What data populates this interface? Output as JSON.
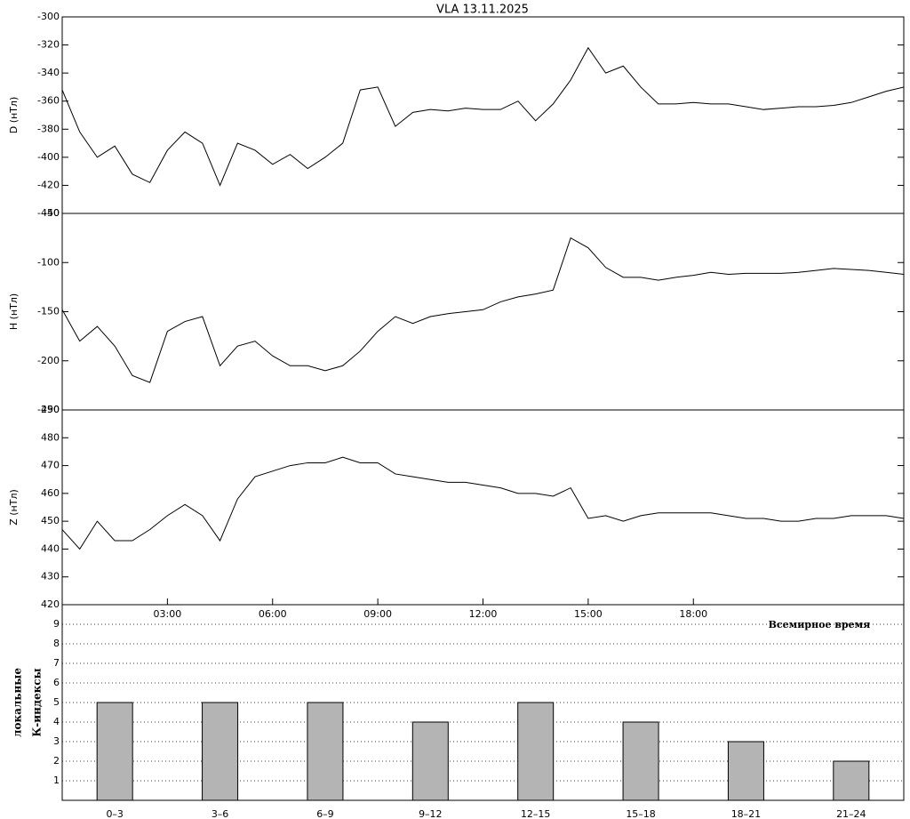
{
  "chart_data": [
    {
      "type": "line",
      "title": "VLA   13.11.2025",
      "y_label": "D (нТл)",
      "color": "#000000",
      "x": [
        0,
        0.5,
        1,
        1.5,
        2,
        2.5,
        3,
        3.5,
        4,
        4.5,
        5,
        5.5,
        6,
        6.5,
        7,
        7.5,
        8,
        8.5,
        9,
        9.5,
        10,
        10.5,
        11,
        11.5,
        12,
        12.5,
        13,
        13.5,
        14,
        14.5,
        15,
        15.5,
        16,
        16.5,
        17,
        17.5,
        18,
        18.5,
        19,
        19.5,
        20,
        20.5,
        21,
        21.5,
        22,
        22.5,
        23,
        23.5,
        24
      ],
      "values": [
        -352,
        -382,
        -400,
        -392,
        -412,
        -418,
        -395,
        -382,
        -390,
        -420,
        -390,
        -395,
        -405,
        -398,
        -408,
        -400,
        -390,
        -352,
        -350,
        -378,
        -368,
        -366,
        -367,
        -365,
        -366,
        -366,
        -360,
        -374,
        -362,
        -345,
        -322,
        -340,
        -335,
        -350,
        -362,
        -362,
        -361,
        -362,
        -362,
        -364,
        -366,
        -365,
        -364,
        -364,
        -363,
        -361,
        -357,
        -353,
        -350
      ],
      "xlim": [
        0,
        24
      ],
      "ylim": [
        -440,
        -300
      ],
      "yticks": [
        -440,
        -420,
        -400,
        -380,
        -360,
        -340,
        -320,
        -300
      ]
    },
    {
      "type": "line",
      "y_label": "H (нТл)",
      "color": "#000000",
      "x": [
        0,
        0.5,
        1,
        1.5,
        2,
        2.5,
        3,
        3.5,
        4,
        4.5,
        5,
        5.5,
        6,
        6.5,
        7,
        7.5,
        8,
        8.5,
        9,
        9.5,
        10,
        10.5,
        11,
        11.5,
        12,
        12.5,
        13,
        13.5,
        14,
        14.5,
        15,
        15.5,
        16,
        16.5,
        17,
        17.5,
        18,
        18.5,
        19,
        19.5,
        20,
        20.5,
        21,
        21.5,
        22,
        22.5,
        23,
        23.5,
        24
      ],
      "values": [
        -148,
        -180,
        -165,
        -185,
        -215,
        -222,
        -170,
        -160,
        -155,
        -205,
        -185,
        -180,
        -195,
        -205,
        -205,
        -210,
        -205,
        -190,
        -170,
        -155,
        -162,
        -155,
        -152,
        -150,
        -148,
        -140,
        -135,
        -132,
        -128,
        -75,
        -85,
        -105,
        -115,
        -115,
        -118,
        -115,
        -113,
        -110,
        -112,
        -111,
        -111,
        -111,
        -110,
        -108,
        -106,
        -107,
        -108,
        -110,
        -112
      ],
      "xlim": [
        0,
        24
      ],
      "ylim": [
        -250,
        -50
      ],
      "yticks": [
        -250,
        -200,
        -150,
        -100,
        -50
      ]
    },
    {
      "type": "line",
      "y_label": "Z (нТл)",
      "color": "#000000",
      "x": [
        0,
        0.5,
        1,
        1.5,
        2,
        2.5,
        3,
        3.5,
        4,
        4.5,
        5,
        5.5,
        6,
        6.5,
        7,
        7.5,
        8,
        8.5,
        9,
        9.5,
        10,
        10.5,
        11,
        11.5,
        12,
        12.5,
        13,
        13.5,
        14,
        14.5,
        15,
        15.5,
        16,
        16.5,
        17,
        17.5,
        18,
        18.5,
        19,
        19.5,
        20,
        20.5,
        21,
        21.5,
        22,
        22.5,
        23,
        23.5,
        24
      ],
      "values": [
        447,
        440,
        450,
        443,
        443,
        447,
        452,
        456,
        452,
        443,
        458,
        466,
        468,
        470,
        471,
        471,
        473,
        471,
        471,
        467,
        466,
        465,
        464,
        464,
        463,
        462,
        460,
        460,
        459,
        462,
        451,
        452,
        450,
        452,
        453,
        453,
        453,
        453,
        452,
        451,
        451,
        450,
        450,
        451,
        451,
        452,
        452,
        452,
        451
      ],
      "xlim": [
        0,
        24
      ],
      "ylim": [
        420,
        490
      ],
      "yticks": [
        420,
        430,
        440,
        450,
        460,
        470,
        480,
        490
      ],
      "xticks": [
        {
          "value": 3,
          "label": "03:00"
        },
        {
          "value": 6,
          "label": "06:00"
        },
        {
          "value": 9,
          "label": "09:00"
        },
        {
          "value": 12,
          "label": "12:00"
        },
        {
          "value": 15,
          "label": "15:00"
        },
        {
          "value": 18,
          "label": "18:00"
        }
      ],
      "x_label": "Всемирное время"
    },
    {
      "type": "bar",
      "y_label": [
        "локальные",
        "К-индексы"
      ],
      "color": "#b4b4b4",
      "categories": [
        "0–3",
        "3–6",
        "6–9",
        "9–12",
        "12–15",
        "15–18",
        "18–21",
        "21–24"
      ],
      "values": [
        5,
        5,
        5,
        4,
        5,
        4,
        3,
        2
      ],
      "ylim": [
        0,
        10
      ],
      "yticks": [
        1,
        2,
        3,
        4,
        5,
        6,
        7,
        8,
        9
      ],
      "grid": true
    }
  ]
}
